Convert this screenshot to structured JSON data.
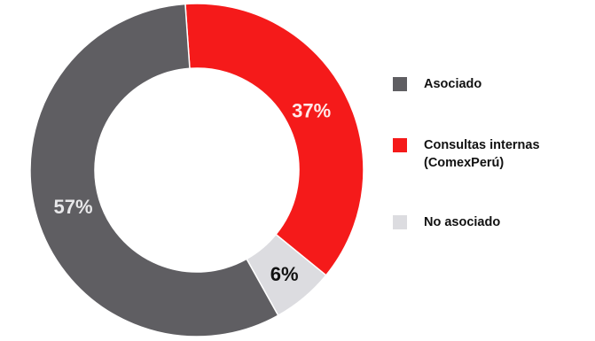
{
  "chart_data": {
    "type": "pie",
    "title": "",
    "legend_position": "right",
    "slices": [
      {
        "label": "Asociado",
        "value": 57,
        "display": "57%",
        "color": "#5f5e62",
        "label_color": "#e8e8ea"
      },
      {
        "label": "Consultas internas\n(ComexPerú)",
        "value": 37,
        "display": "37%",
        "color": "#f51a1a",
        "label_color": "#ffe9e9"
      },
      {
        "label": "No asociado",
        "value": 6,
        "display": "6%",
        "color": "#dcdce0",
        "label_color": "#111111"
      }
    ]
  },
  "legend": {
    "items": [
      {
        "label": "Asociado",
        "color": "#5f5e62"
      },
      {
        "label": "Consultas internas\n(ComexPerú)",
        "color": "#f51a1a"
      },
      {
        "label": "No asociado",
        "color": "#dcdce0"
      }
    ]
  }
}
